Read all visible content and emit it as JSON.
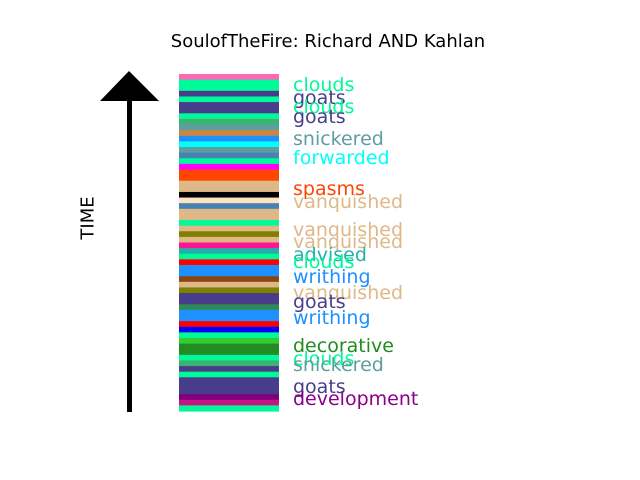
{
  "chart_data": {
    "type": "bar",
    "title": "SoulofTheFire: Richard AND Kahlan",
    "ylabel": "TIME",
    "word_labels": [
      {
        "text": "clouds",
        "color": "#00FA9A"
      },
      {
        "text": "goats",
        "color": "#483D8B"
      },
      {
        "text": "clouds",
        "color": "#00FA9A"
      },
      {
        "text": "goats",
        "color": "#483D8B"
      },
      {
        "text": "snickered",
        "color": "#5F9EA0"
      },
      {
        "text": "forwarded",
        "color": "#00FFFF"
      },
      {
        "text": "spasms",
        "color": "#FF4500"
      },
      {
        "text": "vanquished",
        "color": "#DEB887"
      },
      {
        "text": "vanquished",
        "color": "#DEB887"
      },
      {
        "text": "vanquished",
        "color": "#DEB887"
      },
      {
        "text": "advised",
        "color": "#20B2AA"
      },
      {
        "text": "clouds",
        "color": "#00FA9A"
      },
      {
        "text": "writhing",
        "color": "#1E90FF"
      },
      {
        "text": "vanquished",
        "color": "#DEB887"
      },
      {
        "text": "goats",
        "color": "#483D8B"
      },
      {
        "text": "writhing",
        "color": "#1E90FF"
      },
      {
        "text": "decorative",
        "color": "#228B22"
      },
      {
        "text": "clouds",
        "color": "#00FA9A"
      },
      {
        "text": "snickered",
        "color": "#5F9EA0"
      },
      {
        "text": "goats",
        "color": "#483D8B"
      },
      {
        "text": "development",
        "color": "#8B008B"
      }
    ],
    "stripe_colors": [
      "#FF69B4",
      "#00FA9A",
      "#00FA9A",
      "#483D8B",
      "#00FA9A",
      "#483D8B",
      "#483D8B",
      "#00FA9A",
      "#3CB371",
      "#5F9EA0",
      "#CD853F",
      "#1E90FF",
      "#00FFFF",
      "#5F9EA0",
      "#4682B4",
      "#00FA9A",
      "#FF00FF",
      "#FF4500",
      "#FF4500",
      "#DEB887",
      "#DEB887",
      "#000000",
      "#FFE4C4",
      "#4682B4",
      "#DEB887",
      "#DEB887",
      "#00FA9A",
      "#DEB887",
      "#808000",
      "#DEB887",
      "#FF1493",
      "#20B2AA",
      "#00FA9A",
      "#FF0000",
      "#1E90FF",
      "#1E90FF",
      "#8B4513",
      "#DEB887",
      "#808000",
      "#483D8B",
      "#483D8B",
      "#2E8B57",
      "#1E90FF",
      "#1E90FF",
      "#FF0000",
      "#0000FF",
      "#00FA9A",
      "#32CD32",
      "#228B22",
      "#228B22",
      "#00FA9A",
      "#3CB371",
      "#483D8B",
      "#00FA9A",
      "#483D8B",
      "#483D8B",
      "#483D8B",
      "#800080",
      "#C71585",
      "#00FA9A"
    ]
  }
}
